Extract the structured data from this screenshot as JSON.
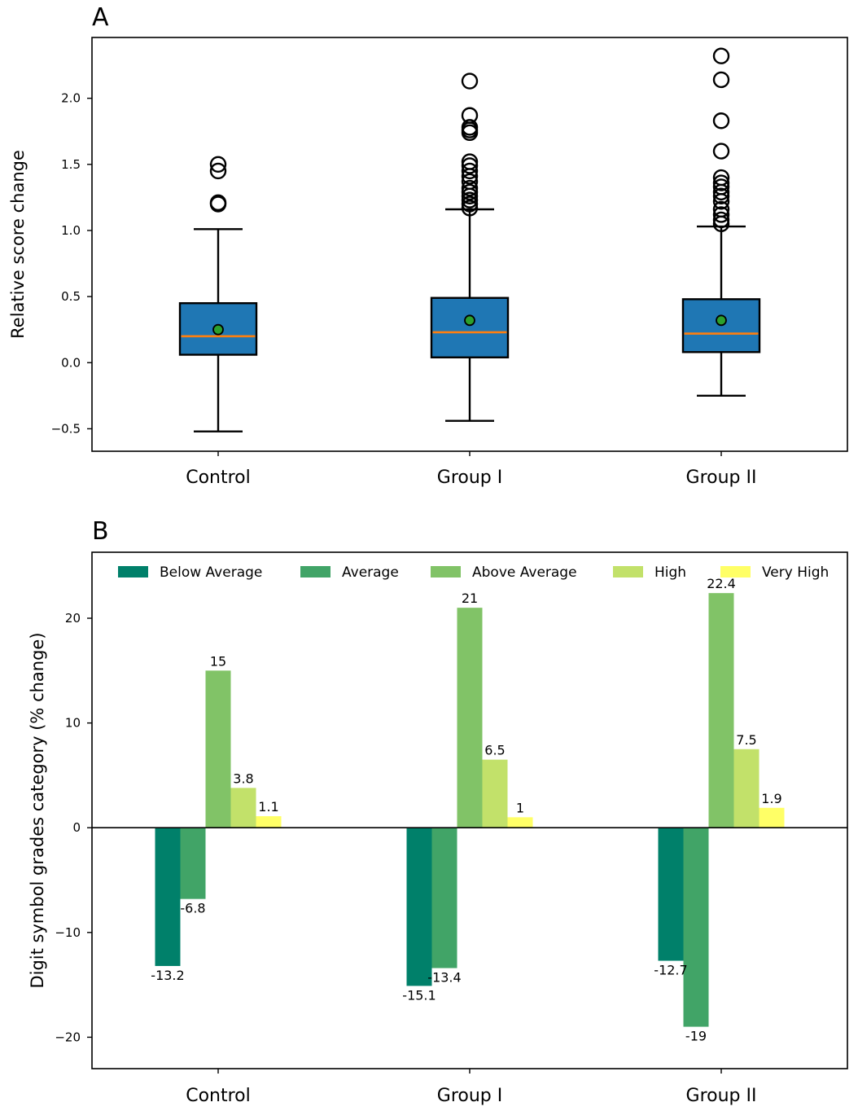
{
  "chart_data": [
    {
      "type": "box",
      "panel_label": "A",
      "ylabel": "Relative score change",
      "ylim": [
        -0.67,
        2.46
      ],
      "yticks": [
        "−0.5",
        "0.0",
        "0.5",
        "1.0",
        "1.5",
        "2.0"
      ],
      "ytick_values": [
        -0.5,
        0.0,
        0.5,
        1.0,
        1.5,
        2.0
      ],
      "grid": false,
      "colors": {
        "box_fill": "#1f77b4",
        "median": "#ff7f0e",
        "mean_marker": "#2ca02c"
      },
      "categories": [
        "Control",
        "Group I",
        "Group II"
      ],
      "boxes": [
        {
          "whisker_low": -0.52,
          "q1": 0.06,
          "median": 0.2,
          "q3": 0.45,
          "whisker_high": 1.01,
          "mean": 0.25,
          "outliers": [
            1.5,
            1.45,
            1.21,
            1.2
          ]
        },
        {
          "whisker_low": -0.44,
          "q1": 0.04,
          "median": 0.23,
          "q3": 0.49,
          "whisker_high": 1.16,
          "mean": 0.32,
          "outliers": [
            2.13,
            1.87,
            1.78,
            1.76,
            1.74,
            1.52,
            1.49,
            1.45,
            1.41,
            1.37,
            1.32,
            1.29,
            1.26,
            1.23,
            1.2,
            1.17
          ]
        },
        {
          "whisker_low": -0.25,
          "q1": 0.08,
          "median": 0.22,
          "q3": 0.48,
          "whisker_high": 1.03,
          "mean": 0.32,
          "outliers": [
            2.32,
            2.14,
            1.83,
            1.6,
            1.4,
            1.36,
            1.33,
            1.29,
            1.26,
            1.22,
            1.16,
            1.12,
            1.08,
            1.05
          ]
        }
      ]
    },
    {
      "type": "bar",
      "panel_label": "B",
      "ylabel": "Digit symbol grades category (% change)",
      "ylim": [
        -23.0,
        26.3
      ],
      "yticks": [
        "−20",
        "−10",
        "0",
        "10",
        "20"
      ],
      "ytick_values": [
        -20,
        -10,
        0,
        10,
        20
      ],
      "grid": false,
      "legend_position": "top",
      "categories": [
        "Control",
        "Group I",
        "Group II"
      ],
      "series": [
        {
          "name": "Below Average",
          "color": "#00806a",
          "values": [
            -13.2,
            -15.1,
            -12.7
          ],
          "labels": [
            "-13.2",
            "-15.1",
            "-12.7"
          ]
        },
        {
          "name": "Average",
          "color": "#41a467",
          "values": [
            -6.8,
            -13.4,
            -19
          ],
          "labels": [
            "-6.8",
            "-13.4",
            "-19"
          ]
        },
        {
          "name": "Above Average",
          "color": "#81c367",
          "values": [
            15,
            21,
            22.4
          ],
          "labels": [
            "15",
            "21",
            "22.4"
          ]
        },
        {
          "name": "High",
          "color": "#c2e16a",
          "values": [
            3.8,
            6.5,
            7.5
          ],
          "labels": [
            "3.8",
            "6.5",
            "7.5"
          ]
        },
        {
          "name": "Very High",
          "color": "#ffff66",
          "values": [
            1.1,
            1,
            1.9
          ],
          "labels": [
            "1.1",
            "1",
            "1.9"
          ]
        }
      ]
    }
  ]
}
